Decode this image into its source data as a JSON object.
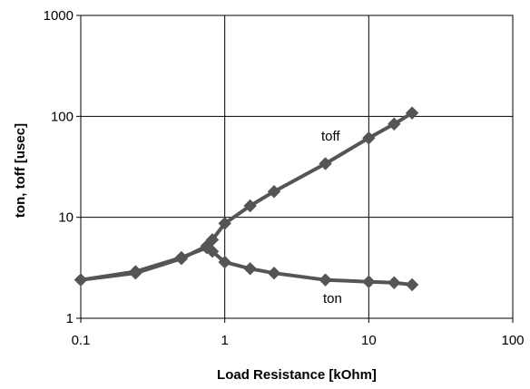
{
  "chart_data": {
    "type": "line",
    "title": "",
    "xlabel": "Load Resistance  [kOhm]",
    "ylabel": "ton, toff  [usec]",
    "xscale": "log",
    "yscale": "log",
    "xlim": [
      0.1,
      100
    ],
    "ylim": [
      1,
      1000
    ],
    "xticks": [
      0.1,
      1,
      10,
      100
    ],
    "xtick_labels": [
      "0.1",
      "1",
      "10",
      "100"
    ],
    "yticks": [
      1,
      10,
      100,
      1000
    ],
    "ytick_labels": [
      "1",
      "10",
      "100",
      "1000"
    ],
    "grid": true,
    "legend": "none",
    "marker": "diamond",
    "line_color": "#555555",
    "series": [
      {
        "name": "toff",
        "x": [
          0.1,
          0.24,
          0.5,
          0.75,
          0.82,
          1.0,
          1.5,
          2.2,
          5,
          10,
          15,
          20
        ],
        "y": [
          2.4,
          2.9,
          4.0,
          5.0,
          6.0,
          8.7,
          13,
          18,
          34,
          61,
          84,
          108
        ]
      },
      {
        "name": "ton",
        "x": [
          0.1,
          0.24,
          0.5,
          0.75,
          0.82,
          1.0,
          1.5,
          2.2,
          5,
          10,
          15,
          20
        ],
        "y": [
          2.4,
          2.8,
          3.9,
          5.2,
          4.6,
          3.6,
          3.1,
          2.8,
          2.4,
          2.3,
          2.25,
          2.15
        ]
      }
    ]
  }
}
